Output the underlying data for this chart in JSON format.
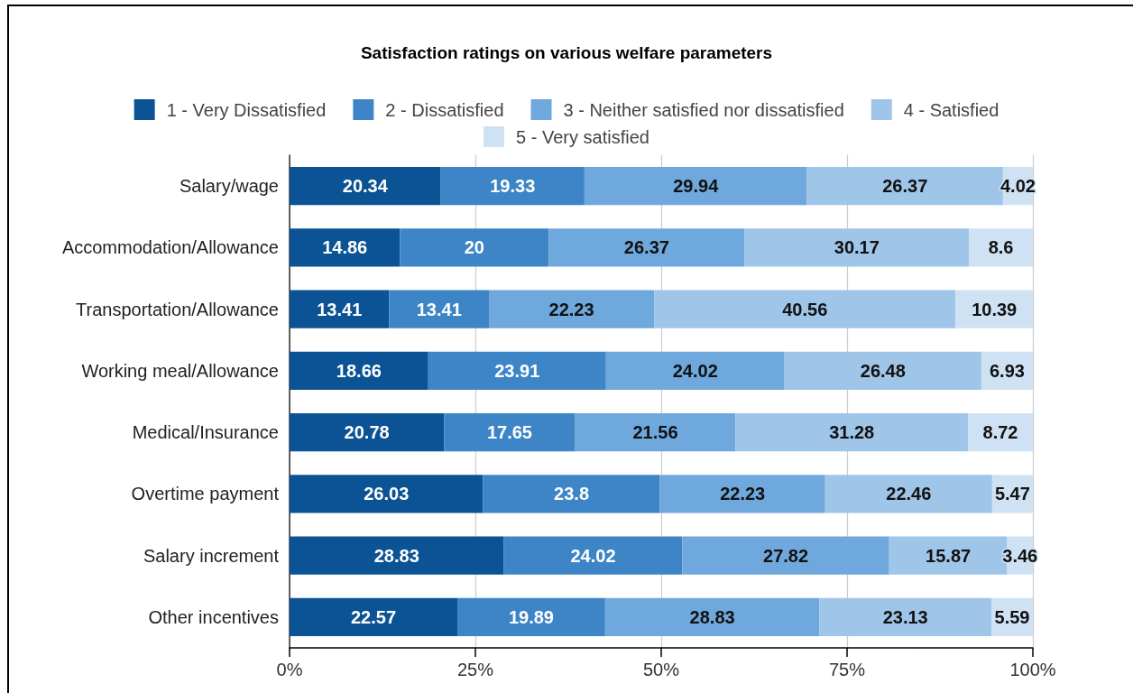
{
  "chart_data": {
    "type": "bar",
    "title": "Satisfaction ratings on various welfare parameters",
    "orientation": "horizontal",
    "stacked": true,
    "categories": [
      "Salary/wage",
      "Accommodation/Allowance",
      "Transportation/Allowance",
      "Working meal/Allowance",
      "Medical/Insurance",
      "Overtime payment",
      "Salary increment",
      "Other incentives"
    ],
    "series": [
      {
        "name": "1 - Very Dissatisfied",
        "color": "#0b5394",
        "values": [
          20.34,
          14.86,
          13.41,
          18.66,
          20.78,
          26.03,
          28.83,
          22.57
        ]
      },
      {
        "name": "2 - Dissatisfied",
        "color": "#3d85c6",
        "values": [
          19.33,
          20,
          13.41,
          23.91,
          17.65,
          23.8,
          24.02,
          19.89
        ]
      },
      {
        "name": "3 - Neither satisfied nor dissatisfied",
        "color": "#6fa8dc",
        "values": [
          29.94,
          26.37,
          22.23,
          24.02,
          21.56,
          22.23,
          27.82,
          28.83
        ]
      },
      {
        "name": "4 - Satisfied",
        "color": "#9fc5e8",
        "values": [
          26.37,
          30.17,
          40.56,
          26.48,
          31.28,
          22.46,
          15.87,
          23.13
        ]
      },
      {
        "name": "5 - Very satisfied",
        "color": "#cfe2f3",
        "values": [
          4.02,
          8.6,
          10.39,
          6.93,
          8.72,
          5.47,
          3.46,
          5.59
        ]
      }
    ],
    "xlim": [
      0,
      100
    ],
    "xticks": [
      {
        "value": 0,
        "label": "0%"
      },
      {
        "value": 25,
        "label": "25%"
      },
      {
        "value": 50,
        "label": "50%"
      },
      {
        "value": 75,
        "label": "75%"
      },
      {
        "value": 100,
        "label": "100%"
      }
    ],
    "grid": "x",
    "legend": "top",
    "data_labels": true
  }
}
